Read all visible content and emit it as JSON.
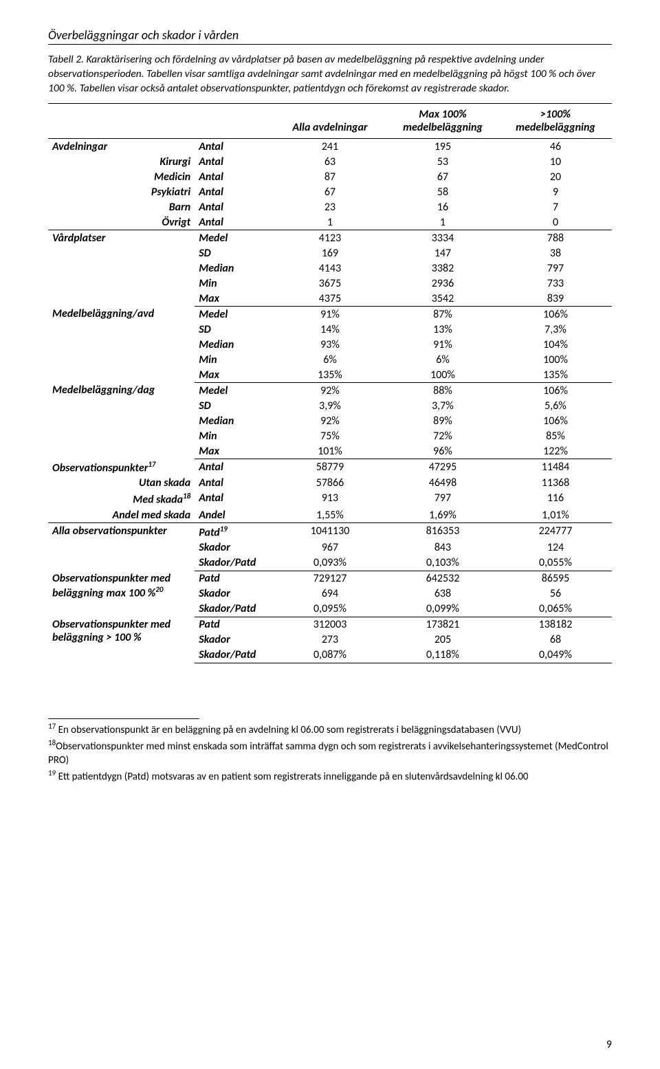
{
  "header": "Överbeläggningar och skador i vården",
  "caption": "Tabell 2. Karaktärisering och fördelning av vårdplatser på basen av medelbeläggning på respektive avdelning under observationsperioden. Tabellen visar samtliga avdelningar samt avdelningar med en medelbeläggning på högst 100 % och över 100 %. Tabellen visar också antalet observationspunkter, patientdygn och förekomst av registrerade skador.",
  "columns": {
    "c2": "Alla avdelningar",
    "c3": "Max 100% medelbeläggning",
    "c4": ">100% medelbeläggning"
  },
  "sections": [
    {
      "group": "Avdelningar",
      "stat": "Antal",
      "vals": [
        "241",
        "195",
        "46"
      ],
      "rows": [
        {
          "label": "Kirurgi",
          "stat": "Antal",
          "vals": [
            "63",
            "53",
            "10"
          ]
        },
        {
          "label": "Medicin",
          "stat": "Antal",
          "vals": [
            "87",
            "67",
            "20"
          ]
        },
        {
          "label": "Psykiatri",
          "stat": "Antal",
          "vals": [
            "67",
            "58",
            "9"
          ]
        },
        {
          "label": "Barn",
          "stat": "Antal",
          "vals": [
            "23",
            "16",
            "7"
          ]
        },
        {
          "label": "Övrigt",
          "stat": "Antal",
          "vals": [
            "1",
            "1",
            "0"
          ]
        }
      ]
    },
    {
      "group": "Vårdplatser",
      "rows": [
        {
          "stat": "Medel",
          "vals": [
            "4123",
            "3334",
            "788"
          ]
        },
        {
          "stat": "SD",
          "vals": [
            "169",
            "147",
            "38"
          ]
        },
        {
          "stat": "Median",
          "vals": [
            "4143",
            "3382",
            "797"
          ]
        },
        {
          "stat": "Min",
          "vals": [
            "3675",
            "2936",
            "733"
          ]
        },
        {
          "stat": "Max",
          "vals": [
            "4375",
            "3542",
            "839"
          ]
        }
      ]
    },
    {
      "group": "Medelbeläggning/avd",
      "rows": [
        {
          "stat": "Medel",
          "vals": [
            "91%",
            "87%",
            "106%"
          ]
        },
        {
          "stat": "SD",
          "vals": [
            "14%",
            "13%",
            "7,3%"
          ]
        },
        {
          "stat": "Median",
          "vals": [
            "93%",
            "91%",
            "104%"
          ]
        },
        {
          "stat": "Min",
          "vals": [
            "6%",
            "6%",
            "100%"
          ]
        },
        {
          "stat": "Max",
          "vals": [
            "135%",
            "100%",
            "135%"
          ]
        }
      ]
    },
    {
      "group": "Medelbeläggning/dag",
      "rows": [
        {
          "stat": "Medel",
          "vals": [
            "92%",
            "88%",
            "106%"
          ]
        },
        {
          "stat": "SD",
          "vals": [
            "3,9%",
            "3,7%",
            "5,6%"
          ]
        },
        {
          "stat": "Median",
          "vals": [
            "92%",
            "89%",
            "106%"
          ]
        },
        {
          "stat": "Min",
          "vals": [
            "75%",
            "72%",
            "85%"
          ]
        },
        {
          "stat": "Max",
          "vals": [
            "101%",
            "96%",
            "122%"
          ]
        }
      ]
    },
    {
      "group_html": "Observationspunkter<sup class='fn'>17</sup>",
      "stat": "Antal",
      "vals": [
        "58779",
        "47295",
        "11484"
      ],
      "rows": [
        {
          "label": "Utan skada",
          "stat": "Antal",
          "vals": [
            "57866",
            "46498",
            "11368"
          ]
        },
        {
          "label_html": "Med skada<sup class='fn'>18</sup>",
          "stat": "Antal",
          "vals": [
            "913",
            "797",
            "116"
          ]
        },
        {
          "label": "Andel med skada",
          "stat": "Andel",
          "vals": [
            "1,55%",
            "1,69%",
            "1,01%"
          ]
        }
      ]
    },
    {
      "group": "Alla observationspunkter",
      "rows": [
        {
          "stat_html": "Patd<sup class='fn'>19</sup>",
          "vals": [
            "1041130",
            "816353",
            "224777"
          ]
        },
        {
          "stat": "Skador",
          "vals": [
            "967",
            "843",
            "124"
          ]
        },
        {
          "stat": "Skador/Patd",
          "vals": [
            "0,093%",
            "0,103%",
            "0,055%"
          ]
        }
      ]
    },
    {
      "group_html": "Observationspunkter med beläggning max 100 %<sup class='fn'>20</sup>",
      "rows": [
        {
          "stat": "Patd",
          "vals": [
            "729127",
            "642532",
            "86595"
          ]
        },
        {
          "stat": "Skador",
          "vals": [
            "694",
            "638",
            "56"
          ]
        },
        {
          "stat": "Skador/Patd",
          "vals": [
            "0,095%",
            "0,099%",
            "0,065%"
          ]
        }
      ]
    },
    {
      "group": "Observationspunkter med beläggning > 100 %",
      "rows": [
        {
          "stat": "Patd",
          "vals": [
            "312003",
            "173821",
            "138182"
          ]
        },
        {
          "stat": "Skador",
          "vals": [
            "273",
            "205",
            "68"
          ]
        },
        {
          "stat": "Skador/Patd",
          "vals": [
            "0,087%",
            "0,118%",
            "0,049%"
          ]
        }
      ]
    }
  ],
  "footnotes": {
    "f17": "En observationspunkt är en beläggning på en avdelning kl 06.00 som registrerats i beläggningsdatabasen (VVU)",
    "f18": "Observationspunkter med minst enskada som inträffat samma dygn och som registrerats i avvikelsehanteringssystemet (MedControl PRO)",
    "f19": "Ett patientdygn (Patd) motsvaras av en patient som registrerats inneliggande på en slutenvårdsavdelning kl 06.00"
  },
  "page_number": "9"
}
